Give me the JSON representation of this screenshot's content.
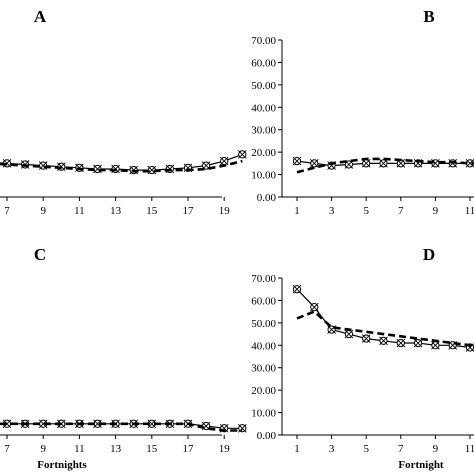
{
  "chart_data": [
    {
      "panel": "A",
      "type": "line",
      "x_ticks": [
        7,
        9,
        11,
        13,
        15,
        17,
        19
      ],
      "y_ticks": [],
      "ylim": [
        0,
        70
      ],
      "xlabel": "",
      "series": [
        {
          "style": "solid-circle",
          "x": [
            6,
            7,
            8,
            9,
            10,
            11,
            12,
            13,
            14,
            15,
            16,
            17,
            18,
            19,
            20
          ],
          "y": [
            15.5,
            15,
            14.5,
            14,
            13.5,
            13,
            12.5,
            12.5,
            12,
            12,
            12.5,
            13,
            14,
            16,
            19
          ]
        },
        {
          "style": "dashed",
          "x": [
            6,
            7,
            8,
            9,
            10,
            11,
            12,
            13,
            14,
            15,
            16,
            17,
            18,
            19,
            20
          ],
          "y": [
            15,
            14.5,
            14,
            13.5,
            13,
            12.5,
            12,
            12,
            11.5,
            11.5,
            12,
            12,
            12.5,
            14,
            16
          ]
        }
      ]
    },
    {
      "panel": "B",
      "type": "line",
      "x_ticks": [
        1,
        3,
        5,
        7,
        9,
        11
      ],
      "y_ticks": [
        "0.00",
        "10.00",
        "20.00",
        "30.00",
        "40.00",
        "50.00",
        "60.00",
        "70.00"
      ],
      "ylim": [
        0,
        70
      ],
      "xlabel": "",
      "series": [
        {
          "style": "solid-circle",
          "x": [
            1,
            2,
            3,
            4,
            5,
            6,
            7,
            8,
            9,
            10,
            11,
            12
          ],
          "y": [
            16,
            15,
            14,
            14.5,
            15,
            15,
            15,
            15,
            15,
            15,
            15,
            15
          ]
        },
        {
          "style": "dashed",
          "x": [
            1,
            2,
            3,
            4,
            5,
            6,
            7,
            8,
            9,
            10,
            11,
            12
          ],
          "y": [
            11,
            13,
            15,
            16,
            17,
            17,
            16.5,
            16,
            15.5,
            15.5,
            15,
            15
          ]
        }
      ]
    },
    {
      "panel": "C",
      "type": "line",
      "x_ticks": [
        7,
        9,
        11,
        13,
        15,
        17,
        19
      ],
      "y_ticks": [],
      "ylim": [
        0,
        70
      ],
      "xlabel": "Fortnights",
      "series": [
        {
          "style": "solid-circle",
          "x": [
            6,
            7,
            8,
            9,
            10,
            11,
            12,
            13,
            14,
            15,
            16,
            17,
            18,
            19,
            20
          ],
          "y": [
            5,
            5,
            5,
            5,
            5,
            5,
            5,
            5,
            5,
            5,
            5,
            5,
            4,
            3,
            3
          ]
        },
        {
          "style": "dashed",
          "x": [
            6,
            7,
            8,
            9,
            10,
            11,
            12,
            13,
            14,
            15,
            16,
            17,
            18,
            19,
            20
          ],
          "y": [
            5,
            5,
            5,
            5,
            5,
            5,
            5,
            5,
            5,
            5,
            5,
            5,
            3,
            2,
            2
          ]
        }
      ]
    },
    {
      "panel": "D",
      "type": "line",
      "x_ticks": [
        1,
        3,
        5,
        7,
        9,
        11
      ],
      "y_ticks": [
        "0.00",
        "10.00",
        "20.00",
        "30.00",
        "40.00",
        "50.00",
        "60.00",
        "70.00"
      ],
      "ylim": [
        0,
        70
      ],
      "xlabel": "Fortnight",
      "series": [
        {
          "style": "solid-circle",
          "x": [
            1,
            2,
            3,
            4,
            5,
            6,
            7,
            8,
            9,
            10,
            11,
            12
          ],
          "y": [
            65,
            57,
            47,
            45,
            43,
            42,
            41,
            41,
            40,
            40,
            39,
            38
          ]
        },
        {
          "style": "dashed",
          "x": [
            1,
            2,
            3,
            4,
            5,
            6,
            7,
            8,
            9,
            10,
            11,
            12
          ],
          "y": [
            52,
            55,
            48,
            47,
            46,
            45,
            44,
            43,
            42,
            41,
            40,
            38
          ]
        }
      ]
    }
  ]
}
